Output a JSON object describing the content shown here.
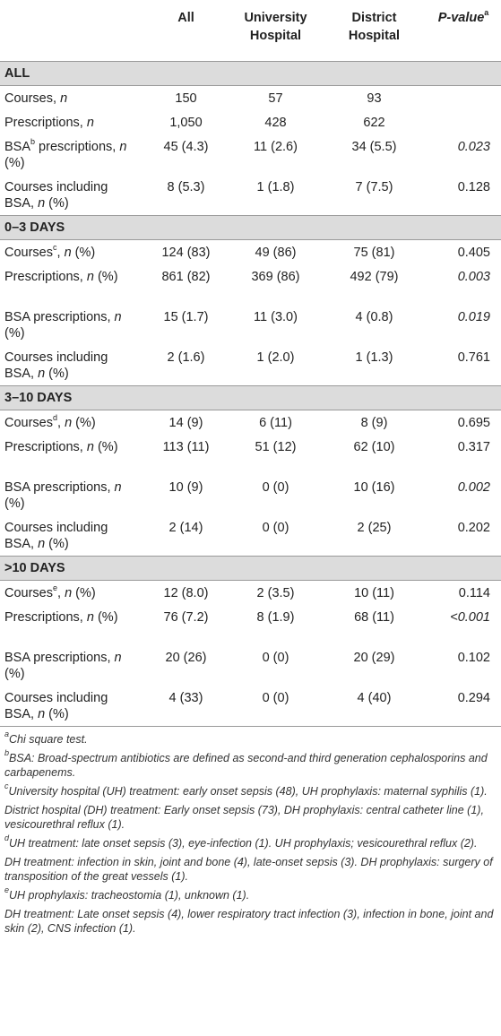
{
  "header": {
    "col0": "",
    "col1": "All",
    "col2": "University Hospital",
    "col3": "District Hospital",
    "col4": "P-value",
    "col4_sup": "a"
  },
  "sections": [
    {
      "title": "ALL",
      "rows": [
        {
          "label": "Courses, ",
          "label_it": "n",
          "label_sup": "",
          "label_tail": "",
          "all": "150",
          "uh": "57",
          "dh": "93",
          "p": "",
          "p_italic": false,
          "lines": 1
        },
        {
          "label": "Prescriptions, ",
          "label_it": "n",
          "label_sup": "",
          "label_tail": "",
          "all": "1,050",
          "uh": "428",
          "dh": "622",
          "p": "",
          "p_italic": false,
          "lines": 1
        },
        {
          "label": "BSA",
          "label_sup": "b",
          "label_tail": " prescriptions, ",
          "label_it": "n",
          "label_end": " (%)",
          "all": "45 (4.3)",
          "uh": "11 (2.6)",
          "dh": "34 (5.5)",
          "p": "0.023",
          "p_italic": true,
          "lines": 2
        },
        {
          "label": "Courses including BSA, ",
          "label_it": "n",
          "label_sup": "",
          "label_tail": "",
          "label_end": " (%)",
          "all": "8 (5.3)",
          "uh": "1 (1.8)",
          "dh": "7 (7.5)",
          "p": "0.128",
          "p_italic": false,
          "lines": 2
        }
      ]
    },
    {
      "title": "0–3 DAYS",
      "rows": [
        {
          "label": "Courses",
          "label_sup": "c",
          "label_tail": ", ",
          "label_it": "n",
          "label_end": " (%)",
          "all": "124 (83)",
          "uh": "49 (86)",
          "dh": "75 (81)",
          "p": "0.405",
          "p_italic": false,
          "lines": 1
        },
        {
          "label": "Prescriptions, ",
          "label_it": "n",
          "label_sup": "",
          "label_tail": "",
          "label_end": " (%)",
          "all": "861 (82)",
          "uh": "369 (86)",
          "dh": "492 (79)",
          "p": "0.003",
          "p_italic": true,
          "lines": 2
        },
        {
          "label": "BSA prescriptions, ",
          "label_it": "n",
          "label_sup": "",
          "label_tail": "",
          "label_end": " (%)",
          "all": "15 (1.7)",
          "uh": "11 (3.0)",
          "dh": "4 (0.8)",
          "p": "0.019",
          "p_italic": true,
          "lines": 2
        },
        {
          "label": "Courses including BSA, ",
          "label_it": "n",
          "label_sup": "",
          "label_tail": "",
          "label_end": " (%)",
          "all": "2 (1.6)",
          "uh": "1 (2.0)",
          "dh": "1 (1.3)",
          "p": "0.761",
          "p_italic": false,
          "lines": 2
        }
      ]
    },
    {
      "title": "3–10 DAYS",
      "rows": [
        {
          "label": "Courses",
          "label_sup": "d",
          "label_tail": ", ",
          "label_it": "n",
          "label_end": " (%)",
          "all": "14 (9)",
          "uh": "6 (11)",
          "dh": "8 (9)",
          "p": "0.695",
          "p_italic": false,
          "lines": 1
        },
        {
          "label": "Prescriptions, ",
          "label_it": "n",
          "label_sup": "",
          "label_tail": "",
          "label_end": " (%)",
          "all": "113 (11)",
          "uh": "51 (12)",
          "dh": "62 (10)",
          "p": "0.317",
          "p_italic": false,
          "lines": 2
        },
        {
          "label": "BSA prescriptions, ",
          "label_it": "n",
          "label_sup": "",
          "label_tail": "",
          "label_end": " (%)",
          "all": "10 (9)",
          "uh": "0 (0)",
          "dh": "10 (16)",
          "p": "0.002",
          "p_italic": true,
          "lines": 2
        },
        {
          "label": "Courses including BSA, ",
          "label_it": "n",
          "label_sup": "",
          "label_tail": "",
          "label_end": " (%)",
          "all": "2 (14)",
          "uh": "0 (0)",
          "dh": "2 (25)",
          "p": "0.202",
          "p_italic": false,
          "lines": 2
        }
      ]
    },
    {
      "title": ">10 DAYS",
      "rows": [
        {
          "label": "Courses",
          "label_sup": "e",
          "label_tail": ", ",
          "label_it": "n",
          "label_end": " (%)",
          "all": "12 (8.0)",
          "uh": "2 (3.5)",
          "dh": "10 (11)",
          "p": "0.114",
          "p_italic": false,
          "lines": 1
        },
        {
          "label": "Prescriptions, ",
          "label_it": "n",
          "label_sup": "",
          "label_tail": "",
          "label_end": " (%)",
          "all": "76 (7.2)",
          "uh": "8 (1.9)",
          "dh": "68 (11)",
          "p": "<0.001",
          "p_italic": true,
          "lines": 2
        },
        {
          "label": "BSA prescriptions, ",
          "label_it": "n",
          "label_sup": "",
          "label_tail": "",
          "label_end": " (%)",
          "all": "20 (26)",
          "uh": "0 (0)",
          "dh": "20 (29)",
          "p": "0.102",
          "p_italic": false,
          "lines": 2
        },
        {
          "label": "Courses including BSA, ",
          "label_it": "n",
          "label_sup": "",
          "label_tail": "",
          "label_end": " (%)",
          "all": "4 (33)",
          "uh": "0 (0)",
          "dh": "4 (40)",
          "p": "0.294",
          "p_italic": false,
          "lines": 2
        }
      ]
    }
  ],
  "footnotes": [
    {
      "sup": "a",
      "text": "Chi square test."
    },
    {
      "sup": "b",
      "text": "BSA: Broad-spectrum antibiotics are defined as second-and third generation cephalosporins and carbapenems."
    },
    {
      "sup": "c",
      "text": "University hospital (UH) treatment: early onset sepsis (48), UH prophylaxis: maternal syphilis (1)."
    },
    {
      "sup": "",
      "text": "District hospital (DH) treatment: Early onset sepsis (73), DH prophylaxis: central catheter line (1), vesicourethral reflux (1)."
    },
    {
      "sup": "d",
      "text": "UH treatment: late onset sepsis (3), eye-infection (1). UH prophylaxis; vesicourethral reflux (2)."
    },
    {
      "sup": "",
      "text": "DH treatment: infection in skin, joint and bone (4), late-onset sepsis (3). DH prophylaxis: surgery of transposition of the great vessels (1)."
    },
    {
      "sup": "e",
      "text": "UH prophylaxis: tracheostomia (1), unknown (1)."
    },
    {
      "sup": "",
      "text": "DH treatment: Late onset sepsis (4), lower respiratory tract infection (3), infection in bone, joint and skin (2), CNS infection (1)."
    }
  ]
}
